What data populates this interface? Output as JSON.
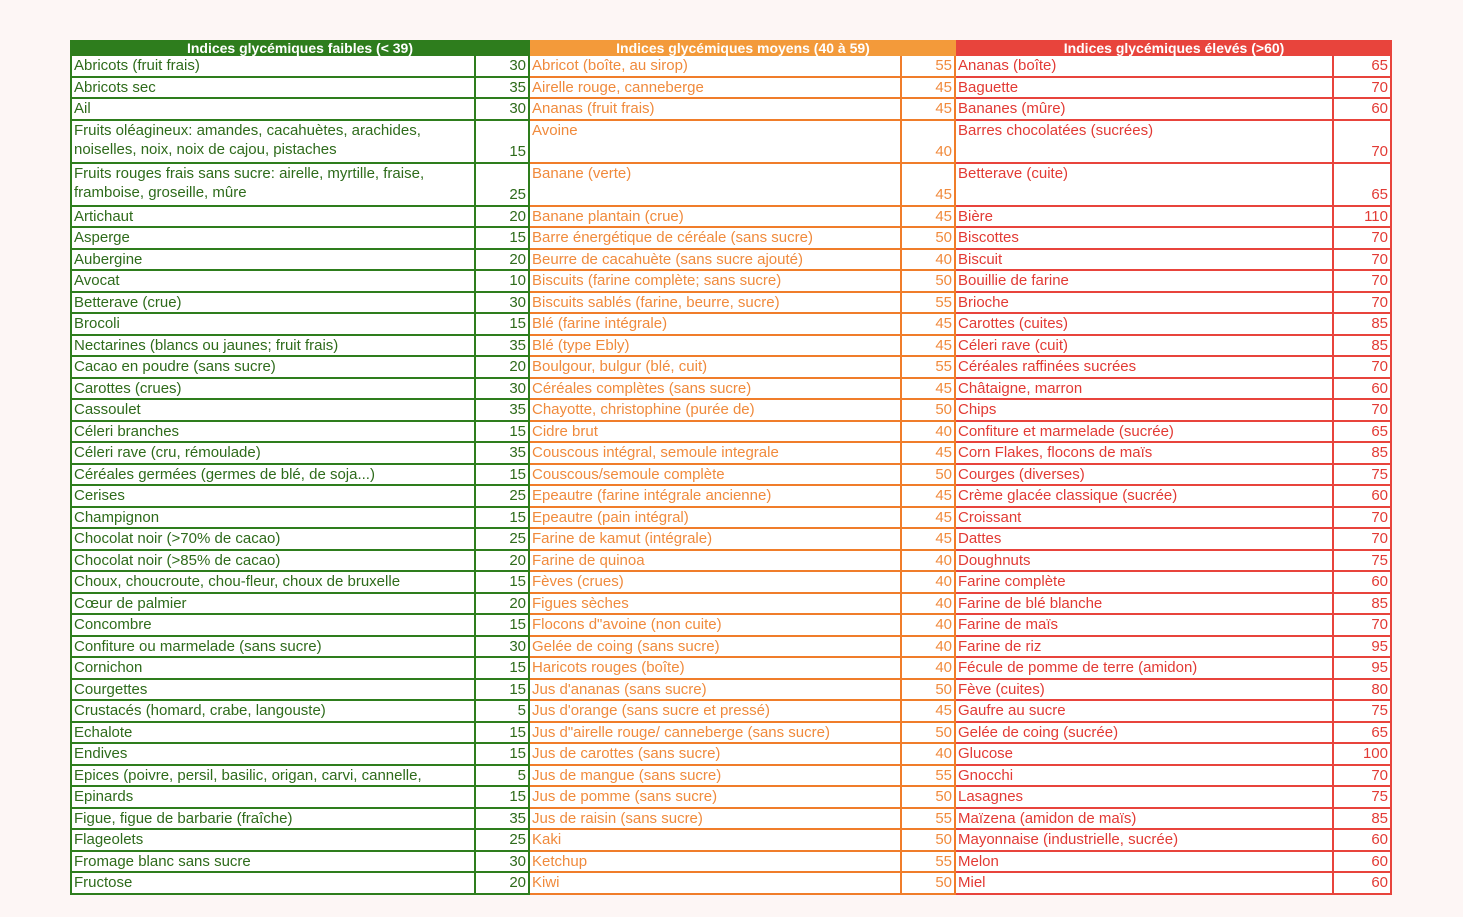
{
  "columns": [
    {
      "key": "low",
      "header": "Indices glycémiques faibles (< 39)",
      "color": "#2e7d1d",
      "rows": [
        {
          "name": "Abricots (fruit frais)",
          "value": "30"
        },
        {
          "name": "Abricots sec",
          "value": "35"
        },
        {
          "name": "Ail",
          "value": "30"
        },
        {
          "name": "Fruits oléagineux: amandes, cacahuètes, arachides, noiselles, noix, noix de cajou, pistaches",
          "value": "15"
        },
        {
          "name": "Fruits rouges frais sans sucre: airelle, myrtille, fraise, framboise, groseille, mûre",
          "value": "25"
        },
        {
          "name": "Artichaut",
          "value": "20"
        },
        {
          "name": "Asperge",
          "value": "15"
        },
        {
          "name": "Aubergine",
          "value": "20"
        },
        {
          "name": "Avocat",
          "value": "10"
        },
        {
          "name": "Betterave (crue)",
          "value": "30"
        },
        {
          "name": "Brocoli",
          "value": "15"
        },
        {
          "name": "Nectarines (blancs ou jaunes; fruit frais)",
          "value": "35"
        },
        {
          "name": "Cacao en poudre (sans sucre)",
          "value": "20"
        },
        {
          "name": "Carottes (crues)",
          "value": "30"
        },
        {
          "name": "Cassoulet",
          "value": "35"
        },
        {
          "name": "Céleri branches",
          "value": "15"
        },
        {
          "name": "Céleri rave (cru, rémoulade)",
          "value": "35"
        },
        {
          "name": "Céréales germées (germes de blé, de soja...)",
          "value": "15"
        },
        {
          "name": "Cerises",
          "value": "25"
        },
        {
          "name": "Champignon",
          "value": "15"
        },
        {
          "name": "Chocolat noir (>70% de cacao)",
          "value": "25"
        },
        {
          "name": "Chocolat noir (>85% de cacao)",
          "value": "20"
        },
        {
          "name": "Choux, choucroute, chou-fleur, choux de bruxelle",
          "value": "15"
        },
        {
          "name": "Cœur de palmier",
          "value": "20"
        },
        {
          "name": "Concombre",
          "value": "15"
        },
        {
          "name": "Confiture ou marmelade (sans sucre)",
          "value": "30"
        },
        {
          "name": "Cornichon",
          "value": "15"
        },
        {
          "name": "Courgettes",
          "value": "15"
        },
        {
          "name": "Crustacés (homard, crabe, langouste)",
          "value": "5"
        },
        {
          "name": "Echalote",
          "value": "15"
        },
        {
          "name": "Endives",
          "value": "15"
        },
        {
          "name": "Epices (poivre, persil, basilic, origan, carvi, cannelle,",
          "value": "5"
        },
        {
          "name": "Epinards",
          "value": "15"
        },
        {
          "name": "Figue, figue de barbarie (fraîche)",
          "value": "35"
        },
        {
          "name": "Flageolets",
          "value": "25"
        },
        {
          "name": "Fromage blanc sans sucre",
          "value": "30"
        },
        {
          "name": "Fructose",
          "value": "20"
        }
      ]
    },
    {
      "key": "mid",
      "header": "Indices glycémiques moyens (40 à 59)",
      "color": "#f39a3a",
      "rows": [
        {
          "name": "Abricot (boîte, au sirop)",
          "value": "55"
        },
        {
          "name": "Airelle rouge, canneberge",
          "value": "45"
        },
        {
          "name": "Ananas (fruit frais)",
          "value": "45"
        },
        {
          "name": "Avoine",
          "value": "40"
        },
        {
          "name": "Banane (verte)",
          "value": "45"
        },
        {
          "name": "Banane plantain (crue)",
          "value": "45"
        },
        {
          "name": "Barre énergétique de céréale (sans sucre)",
          "value": "50"
        },
        {
          "name": "Beurre de cacahuète (sans sucre ajouté)",
          "value": "40"
        },
        {
          "name": "Biscuits (farine complète; sans sucre)",
          "value": "50"
        },
        {
          "name": "Biscuits sablés (farine, beurre, sucre)",
          "value": "55"
        },
        {
          "name": "Blé (farine intégrale)",
          "value": "45"
        },
        {
          "name": "Blé (type Ebly)",
          "value": "45"
        },
        {
          "name": "Boulgour, bulgur (blé, cuit)",
          "value": "55"
        },
        {
          "name": "Céréales complètes (sans sucre)",
          "value": "45"
        },
        {
          "name": "Chayotte, christophine (purée de)",
          "value": "50"
        },
        {
          "name": "Cidre brut",
          "value": "40"
        },
        {
          "name": "Couscous intégral, semoule integrale",
          "value": "45"
        },
        {
          "name": "Couscous/semoule complète",
          "value": "50"
        },
        {
          "name": "Epeautre (farine intégrale ancienne)",
          "value": "45"
        },
        {
          "name": "Epeautre (pain intégral)",
          "value": "45"
        },
        {
          "name": "Farine de kamut (intégrale)",
          "value": "45"
        },
        {
          "name": "Farine de quinoa",
          "value": "40"
        },
        {
          "name": "Fèves (crues)",
          "value": "40"
        },
        {
          "name": "Figues sèches",
          "value": "40"
        },
        {
          "name": "Flocons d\"avoine (non cuite)",
          "value": "40"
        },
        {
          "name": "Gelée de coing (sans sucre)",
          "value": "40"
        },
        {
          "name": "Haricots rouges (boîte)",
          "value": "40"
        },
        {
          "name": "Jus d'ananas (sans sucre)",
          "value": "50"
        },
        {
          "name": "Jus d'orange (sans sucre et pressé)",
          "value": "45"
        },
        {
          "name": "Jus d\"airelle rouge/ canneberge (sans sucre)",
          "value": "50"
        },
        {
          "name": "Jus de carottes (sans sucre)",
          "value": "40"
        },
        {
          "name": "Jus de mangue (sans sucre)",
          "value": "55"
        },
        {
          "name": "Jus de pomme (sans sucre)",
          "value": "50"
        },
        {
          "name": "Jus de raisin (sans sucre)",
          "value": "55"
        },
        {
          "name": "Kaki",
          "value": "50"
        },
        {
          "name": "Ketchup",
          "value": "55"
        },
        {
          "name": "Kiwi",
          "value": "50"
        }
      ]
    },
    {
      "key": "high",
      "header": "Indices glycémiques élevés (>60)",
      "color": "#e8443c",
      "rows": [
        {
          "name": "Ananas (boîte)",
          "value": "65"
        },
        {
          "name": "Baguette",
          "value": "70"
        },
        {
          "name": "Bananes (mûre)",
          "value": "60"
        },
        {
          "name": "Barres chocolatées (sucrées)",
          "value": "70"
        },
        {
          "name": "Betterave (cuite)",
          "value": "65"
        },
        {
          "name": "Bière",
          "value": "110"
        },
        {
          "name": "Biscottes",
          "value": "70"
        },
        {
          "name": "Biscuit",
          "value": "70"
        },
        {
          "name": "Bouillie de farine",
          "value": "70"
        },
        {
          "name": "Brioche",
          "value": "70"
        },
        {
          "name": "Carottes (cuites)",
          "value": "85"
        },
        {
          "name": "Céleri rave (cuit)",
          "value": "85"
        },
        {
          "name": "Céréales raffinées sucrées",
          "value": "70"
        },
        {
          "name": "Châtaigne, marron",
          "value": "60"
        },
        {
          "name": "Chips",
          "value": "70"
        },
        {
          "name": "Confiture et marmelade (sucrée)",
          "value": "65"
        },
        {
          "name": "Corn Flakes, flocons de maïs",
          "value": "85"
        },
        {
          "name": "Courges (diverses)",
          "value": "75"
        },
        {
          "name": "Crème glacée classique (sucrée)",
          "value": "60"
        },
        {
          "name": "Croissant",
          "value": "70"
        },
        {
          "name": "Dattes",
          "value": "70"
        },
        {
          "name": "Doughnuts",
          "value": "75"
        },
        {
          "name": "Farine complète",
          "value": "60"
        },
        {
          "name": "Farine de blé blanche",
          "value": "85"
        },
        {
          "name": "Farine de maïs",
          "value": "70"
        },
        {
          "name": "Farine de riz",
          "value": "95"
        },
        {
          "name": "Fécule de pomme de terre (amidon)",
          "value": "95"
        },
        {
          "name": "Fève (cuites)",
          "value": "80"
        },
        {
          "name": "Gaufre au sucre",
          "value": "75"
        },
        {
          "name": "Gelée de coing (sucrée)",
          "value": "65"
        },
        {
          "name": "Glucose",
          "value": "100"
        },
        {
          "name": "Gnocchi",
          "value": "70"
        },
        {
          "name": "Lasagnes",
          "value": "75"
        },
        {
          "name": "Maïzena (amidon de maïs)",
          "value": "85"
        },
        {
          "name": "Mayonnaise (industrielle, sucrée)",
          "value": "60"
        },
        {
          "name": "Melon",
          "value": "60"
        },
        {
          "name": "Miel",
          "value": "60"
        }
      ]
    }
  ]
}
